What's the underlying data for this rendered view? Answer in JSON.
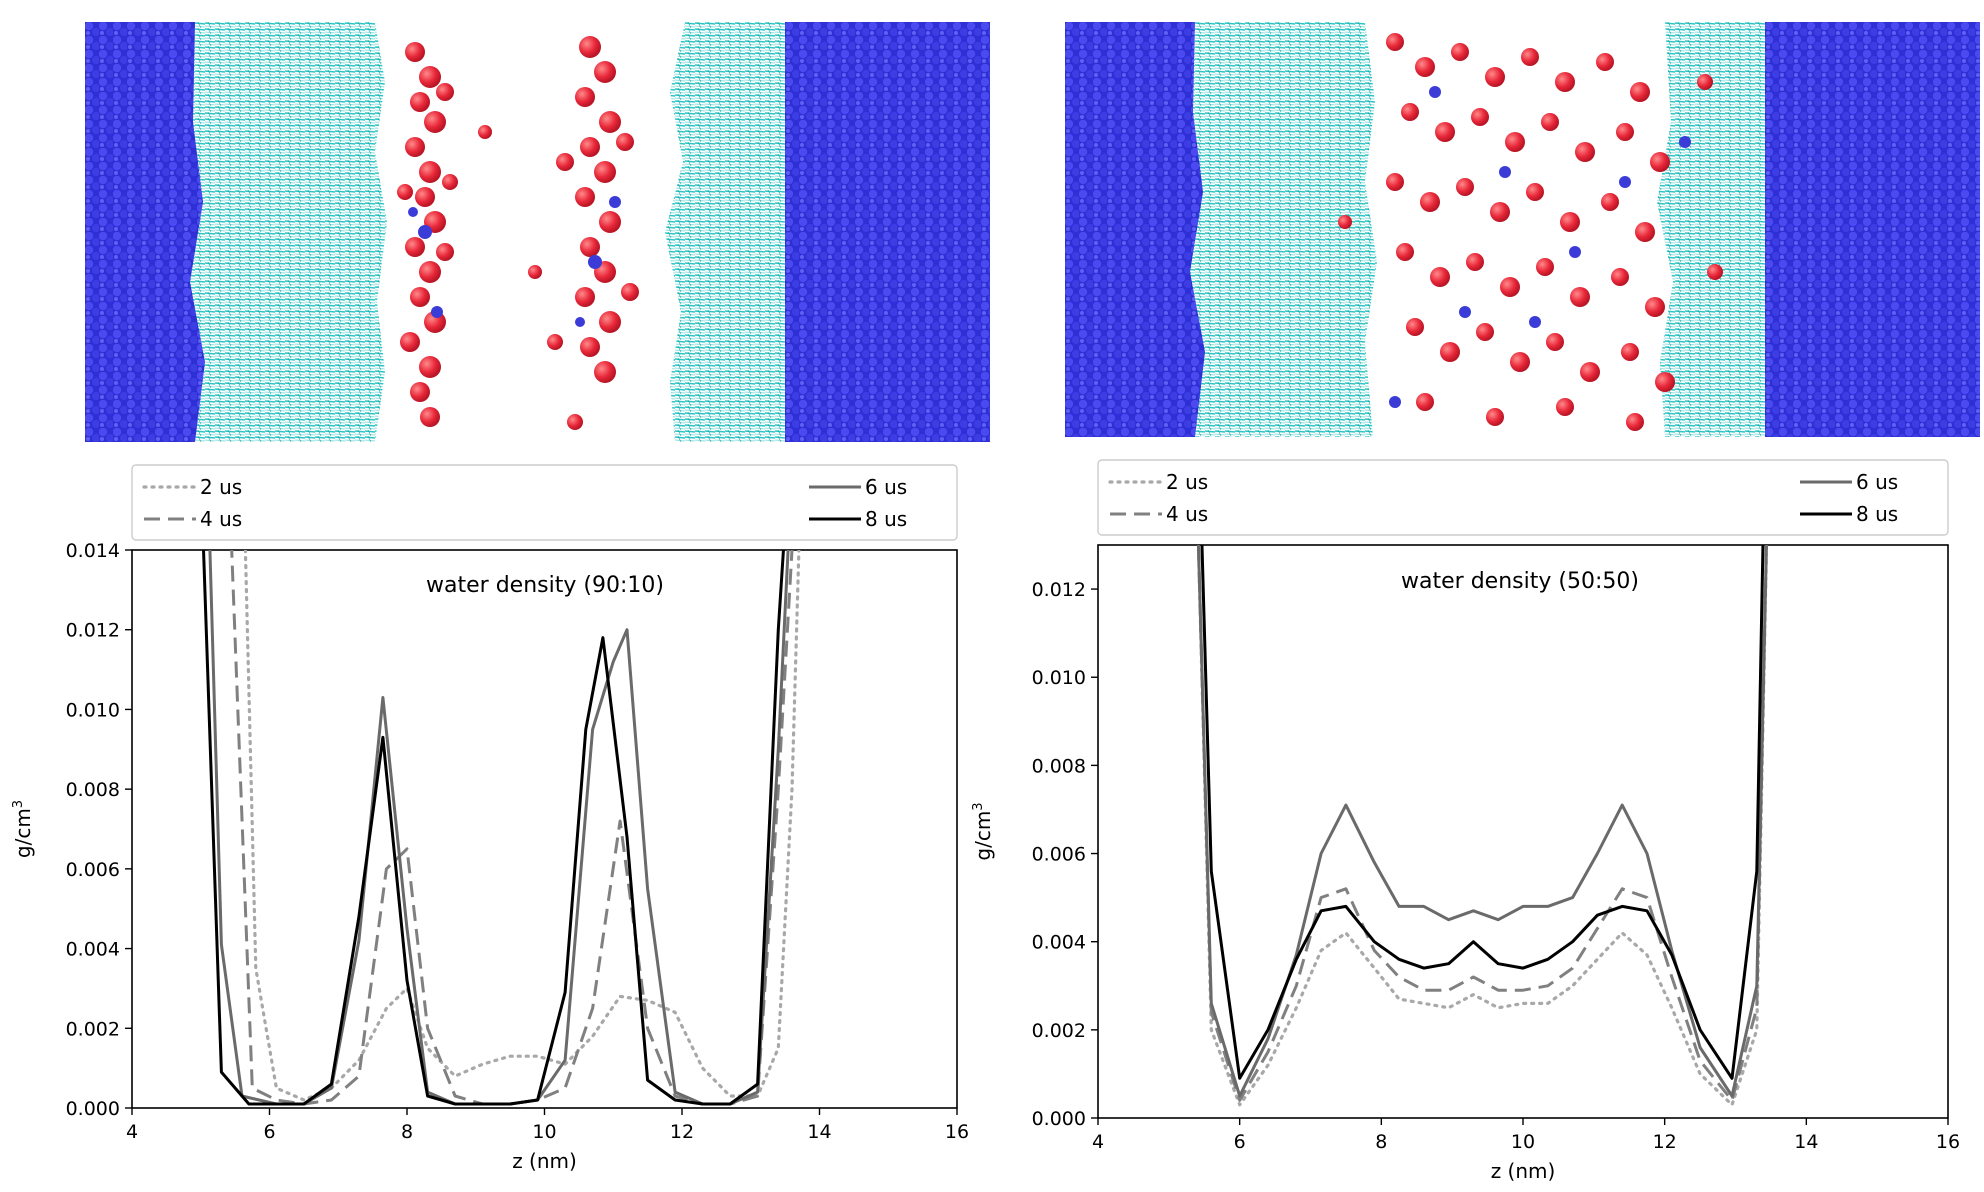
{
  "figure": {
    "snapshots": [
      {
        "name": "snapshot-90-10",
        "description_colors": {
          "water": "#3a3ae0",
          "lipid": "#33c8c8",
          "alcohol": "#e8303a"
        }
      },
      {
        "name": "snapshot-50-50",
        "description_colors": {
          "water": "#3a3ae0",
          "lipid": "#33c8c8",
          "alcohol": "#e8303a"
        }
      }
    ]
  },
  "chart_data": [
    {
      "type": "line",
      "title": "water density (90:10)",
      "xlabel": "z (nm)",
      "ylabel": "g/cm",
      "ylabel_sup": "3",
      "xlim": [
        4,
        16
      ],
      "ylim": [
        0,
        0.014
      ],
      "xticks": [
        4,
        6,
        8,
        10,
        12,
        14,
        16
      ],
      "yticks": [
        0.0,
        0.002,
        0.004,
        0.006,
        0.008,
        0.01,
        0.012,
        0.014
      ],
      "ytick_labels": [
        "0.000",
        "0.002",
        "0.004",
        "0.006",
        "0.008",
        "0.010",
        "0.012",
        "0.014"
      ],
      "legend": {
        "placement": "above",
        "entries": [
          "2 us",
          "4 us",
          "6 us",
          "8 us"
        ]
      },
      "series": [
        {
          "name": "2 us",
          "color": "#a8a8a8",
          "style": "dotted",
          "x": [
            5.5,
            5.65,
            5.8,
            6.1,
            6.5,
            6.9,
            7.3,
            7.7,
            8.0,
            8.3,
            8.7,
            9.1,
            9.5,
            9.9,
            10.3,
            10.7,
            11.1,
            11.5,
            11.9,
            12.3,
            12.7,
            13.1,
            13.4,
            13.6,
            13.7
          ],
          "y": [
            0.016,
            0.014,
            0.0035,
            0.0005,
            0.0002,
            0.0005,
            0.0012,
            0.0025,
            0.003,
            0.0015,
            0.0008,
            0.0011,
            0.0013,
            0.0013,
            0.0011,
            0.0018,
            0.0028,
            0.0027,
            0.0024,
            0.001,
            0.0003,
            0.0003,
            0.0015,
            0.008,
            0.014
          ]
        },
        {
          "name": "4 us",
          "color": "#808080",
          "style": "dashed",
          "x": [
            5.3,
            5.45,
            5.75,
            6.1,
            6.5,
            6.9,
            7.3,
            7.7,
            8.0,
            8.3,
            8.7,
            9.1,
            9.5,
            9.9,
            10.3,
            10.7,
            11.1,
            11.5,
            11.9,
            12.3,
            12.7,
            13.1,
            13.4,
            13.6
          ],
          "y": [
            0.016,
            0.014,
            0.0005,
            0.0002,
            0.0001,
            0.0002,
            0.0008,
            0.006,
            0.0065,
            0.002,
            0.0003,
            0.0001,
            0.0001,
            0.0002,
            0.0005,
            0.0025,
            0.0072,
            0.002,
            0.0003,
            0.0001,
            0.0001,
            0.0003,
            0.008,
            0.014
          ]
        },
        {
          "name": "6 us",
          "color": "#6a6a6a",
          "style": "solid",
          "x": [
            5.1,
            5.3,
            5.6,
            6.1,
            6.5,
            6.9,
            7.3,
            7.65,
            8.0,
            8.3,
            8.7,
            9.1,
            9.5,
            9.9,
            10.3,
            10.7,
            11.0,
            11.2,
            11.5,
            11.9,
            12.3,
            12.7,
            13.1,
            13.4,
            13.6
          ],
          "y": [
            0.016,
            0.0041,
            0.0003,
            0.0001,
            0.0001,
            0.0005,
            0.0042,
            0.0103,
            0.0045,
            0.0004,
            0.0001,
            0.0001,
            0.0001,
            0.0002,
            0.0012,
            0.0095,
            0.0112,
            0.012,
            0.0055,
            0.0004,
            0.0001,
            0.0001,
            0.0004,
            0.009,
            0.016
          ]
        },
        {
          "name": "8 us",
          "color": "#000000",
          "style": "solid",
          "x": [
            5.0,
            5.3,
            5.7,
            6.1,
            6.5,
            6.9,
            7.3,
            7.65,
            8.0,
            8.3,
            8.7,
            9.1,
            9.5,
            9.9,
            10.3,
            10.6,
            10.85,
            11.2,
            11.5,
            11.9,
            12.3,
            12.7,
            13.1,
            13.4,
            13.55
          ],
          "y": [
            0.016,
            0.0009,
            0.0001,
            0.0001,
            0.0001,
            0.0006,
            0.0048,
            0.0093,
            0.0032,
            0.0003,
            0.0001,
            0.0001,
            0.0001,
            0.0002,
            0.0029,
            0.0095,
            0.0118,
            0.0068,
            0.0007,
            0.0002,
            0.0001,
            0.0001,
            0.0006,
            0.012,
            0.016
          ]
        }
      ]
    },
    {
      "type": "line",
      "title": "water density (50:50)",
      "xlabel": "z (nm)",
      "ylabel": "g/cm",
      "ylabel_sup": "3",
      "xlim": [
        4,
        16
      ],
      "ylim": [
        0,
        0.013
      ],
      "xticks": [
        4,
        6,
        8,
        10,
        12,
        14,
        16
      ],
      "yticks": [
        0.0,
        0.002,
        0.004,
        0.006,
        0.008,
        0.01,
        0.012
      ],
      "ytick_labels": [
        "0.000",
        "0.002",
        "0.004",
        "0.006",
        "0.008",
        "0.010",
        "0.012"
      ],
      "legend": {
        "placement": "above",
        "entries": [
          "2 us",
          "4 us",
          "6 us",
          "8 us"
        ]
      },
      "series": [
        {
          "name": "2 us",
          "color": "#a8a8a8",
          "style": "dotted",
          "x": [
            5.4,
            5.6,
            6.0,
            6.4,
            6.8,
            7.15,
            7.5,
            7.9,
            8.25,
            8.6,
            8.95,
            9.3,
            9.65,
            10.0,
            10.35,
            10.7,
            11.05,
            11.4,
            11.75,
            12.1,
            12.5,
            12.95,
            13.3,
            13.45
          ],
          "y": [
            0.014,
            0.002,
            0.0003,
            0.0012,
            0.0025,
            0.0038,
            0.0042,
            0.0034,
            0.0027,
            0.0026,
            0.0025,
            0.0028,
            0.0025,
            0.0026,
            0.0026,
            0.003,
            0.0036,
            0.0042,
            0.0037,
            0.0025,
            0.001,
            0.0003,
            0.002,
            0.014
          ]
        },
        {
          "name": "4 us",
          "color": "#808080",
          "style": "dashed",
          "x": [
            5.4,
            5.6,
            6.0,
            6.4,
            6.8,
            7.15,
            7.5,
            7.9,
            8.25,
            8.6,
            8.95,
            9.3,
            9.65,
            10.0,
            10.35,
            10.7,
            11.05,
            11.4,
            11.75,
            12.1,
            12.5,
            12.95,
            13.3,
            13.45
          ],
          "y": [
            0.014,
            0.0024,
            0.0004,
            0.0015,
            0.003,
            0.005,
            0.0052,
            0.0038,
            0.0032,
            0.0029,
            0.0029,
            0.0032,
            0.0029,
            0.0029,
            0.003,
            0.0034,
            0.0043,
            0.0052,
            0.005,
            0.0032,
            0.0013,
            0.0004,
            0.0025,
            0.014
          ]
        },
        {
          "name": "6 us",
          "color": "#6a6a6a",
          "style": "solid",
          "x": [
            5.4,
            5.6,
            6.0,
            6.4,
            6.8,
            7.15,
            7.5,
            7.9,
            8.25,
            8.6,
            8.95,
            9.3,
            9.65,
            10.0,
            10.35,
            10.7,
            11.05,
            11.4,
            11.75,
            12.1,
            12.5,
            12.95,
            13.3,
            13.45
          ],
          "y": [
            0.014,
            0.0026,
            0.0005,
            0.0018,
            0.0037,
            0.006,
            0.0071,
            0.0058,
            0.0048,
            0.0048,
            0.0045,
            0.0047,
            0.0045,
            0.0048,
            0.0048,
            0.005,
            0.006,
            0.0071,
            0.006,
            0.0038,
            0.0016,
            0.0005,
            0.003,
            0.014
          ]
        },
        {
          "name": "8 us",
          "color": "#000000",
          "style": "solid",
          "x": [
            5.45,
            5.6,
            6.0,
            6.4,
            6.8,
            7.15,
            7.5,
            7.9,
            8.25,
            8.6,
            8.95,
            9.3,
            9.65,
            10.0,
            10.35,
            10.7,
            11.05,
            11.4,
            11.75,
            12.1,
            12.5,
            12.95,
            13.3,
            13.4
          ],
          "y": [
            0.014,
            0.0056,
            0.0009,
            0.002,
            0.0036,
            0.0047,
            0.0048,
            0.004,
            0.0036,
            0.0034,
            0.0035,
            0.004,
            0.0035,
            0.0034,
            0.0036,
            0.004,
            0.0046,
            0.0048,
            0.0047,
            0.0037,
            0.002,
            0.0009,
            0.0056,
            0.014
          ]
        }
      ]
    }
  ]
}
